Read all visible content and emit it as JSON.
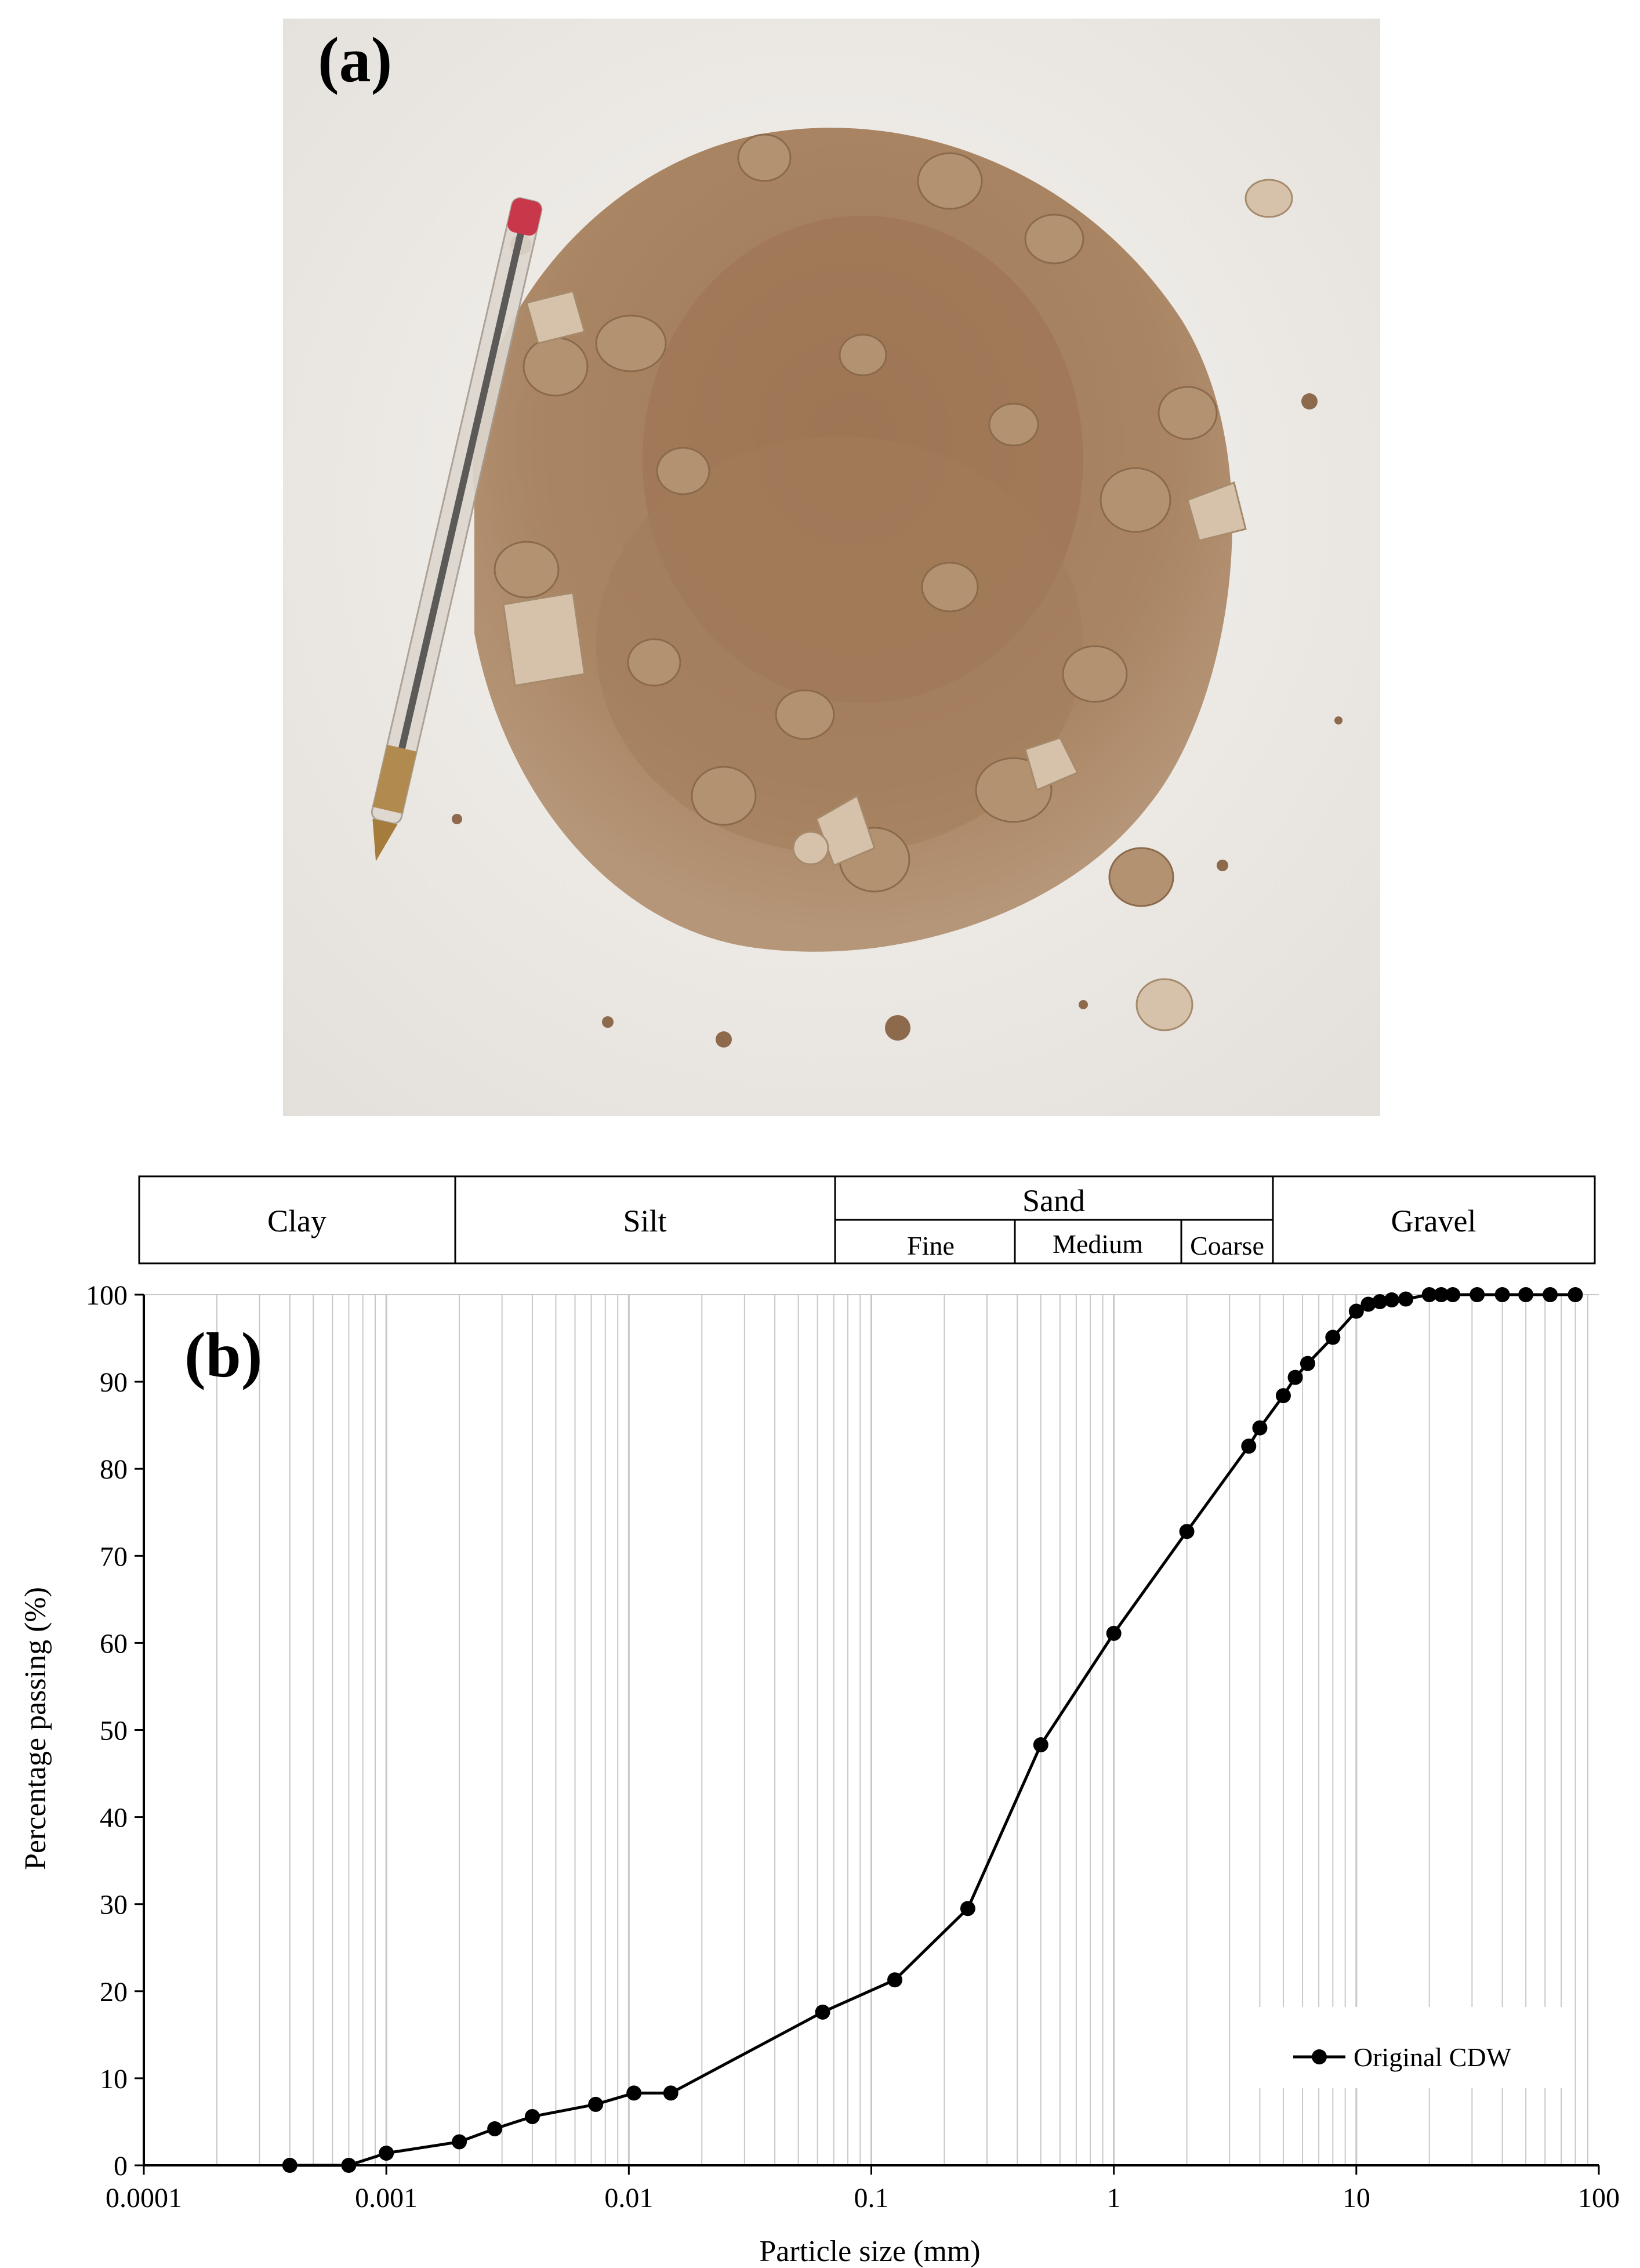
{
  "panel_a": {
    "label": "(a)",
    "description_colors": {
      "background": "#eeebe6",
      "soil": "#a88260",
      "soil_dark": "#8a6548",
      "pen": "#c9b08a"
    }
  },
  "panel_b": {
    "label": "(b)",
    "classification": {
      "clay": "Clay",
      "silt": "Silt",
      "sand": "Sand",
      "sand_fine": "Fine",
      "sand_medium": "Medium",
      "sand_coarse": "Coarse",
      "gravel": "Gravel"
    }
  },
  "chart_data": {
    "type": "line",
    "title": "",
    "xlabel": "Particle size (mm)",
    "ylabel": "Percentage passing (%)",
    "x_scale": "log",
    "xlim": [
      0.0001,
      100
    ],
    "ylim": [
      0,
      100
    ],
    "x_ticks": [
      "0.0001",
      "0.001",
      "0.01",
      "0.1",
      "1",
      "10",
      "100"
    ],
    "y_ticks": [
      "0",
      "10",
      "20",
      "30",
      "40",
      "50",
      "60",
      "70",
      "80",
      "90",
      "100"
    ],
    "grid": true,
    "legend_position": "bottom-right",
    "line_color": "#000000",
    "series": [
      {
        "name": "Original CDW",
        "marker": "circle",
        "x": [
          0.0004,
          0.0007,
          0.001,
          0.002,
          0.0028,
          0.004,
          0.0073,
          0.0105,
          0.0149,
          0.063,
          0.125,
          0.25,
          0.5,
          1,
          2,
          3.6,
          4,
          5,
          5.6,
          6.3,
          8,
          10,
          11.2,
          12.5,
          14,
          16,
          20,
          22.4,
          25,
          31.5,
          40,
          50,
          63,
          80
        ],
        "y": [
          0,
          0,
          1.4,
          2.7,
          4.2,
          5.6,
          7.0,
          8.3,
          8.3,
          17.6,
          21.3,
          29.5,
          48.3,
          61.1,
          72.8,
          82.6,
          84.7,
          88.4,
          90.5,
          92.1,
          95.1,
          98.1,
          98.9,
          99.2,
          99.4,
          99.5,
          100,
          100,
          100,
          100,
          100,
          100,
          100,
          100
        ]
      }
    ]
  }
}
